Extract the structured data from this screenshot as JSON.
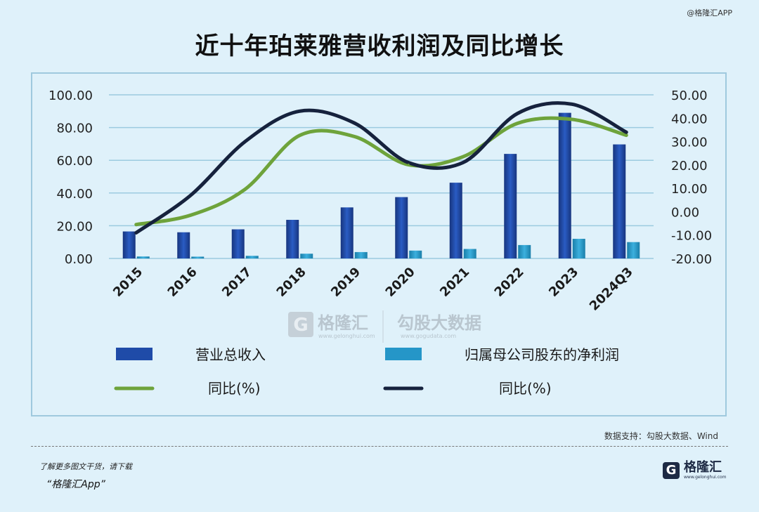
{
  "header": {
    "watermark": "@格隆汇APP",
    "title": "近十年珀莱雅营收利润及同比增长"
  },
  "chart_data": {
    "type": "bar",
    "categories": [
      "2015",
      "2016",
      "2017",
      "2018",
      "2019",
      "2020",
      "2021",
      "2022",
      "2023",
      "2024Q3"
    ],
    "y_left": {
      "ticks": [
        "100.00",
        "80.00",
        "60.00",
        "40.00",
        "20.00",
        "0.00"
      ],
      "ylim": [
        0,
        100
      ]
    },
    "y_right": {
      "ticks": [
        "50.00",
        "40.00",
        "30.00",
        "20.00",
        "10.00",
        "0.00",
        "-10.00",
        "-20.00"
      ],
      "ylim": [
        -20,
        50
      ]
    },
    "series": [
      {
        "name": "营业总收入",
        "kind": "bar",
        "axis": "left",
        "color": "#1f4ba8",
        "values": [
          16.5,
          16.0,
          17.8,
          23.6,
          31.2,
          37.5,
          46.3,
          63.9,
          89.0,
          69.7
        ]
      },
      {
        "name": "归属母公司股东的净利润",
        "kind": "bar",
        "axis": "left",
        "color": "#2596c8",
        "values": [
          1.2,
          1.1,
          1.6,
          2.9,
          3.9,
          4.8,
          5.8,
          8.2,
          12.0,
          10.0
        ]
      },
      {
        "name": "同比(%)",
        "kind": "line",
        "axis": "right",
        "color": "#6ea33b",
        "values": [
          -5.5,
          -1.5,
          9.6,
          32.6,
          32.2,
          20.1,
          23.5,
          37.8,
          39.5,
          32.7
        ]
      },
      {
        "name": "同比(%)",
        "kind": "line",
        "axis": "right",
        "color": "#16223d",
        "values": [
          -9.0,
          7.0,
          30.0,
          43.0,
          38.0,
          21.0,
          21.0,
          42.0,
          46.0,
          34.0
        ]
      }
    ],
    "grid": true,
    "legend_position": "bottom"
  },
  "watermark_center": {
    "logo_glyph": "G",
    "brand": "格隆汇",
    "brand_url": "www.gelonghui.com",
    "partner": "勾股大数据",
    "partner_url": "www.gogudata.com"
  },
  "footer": {
    "source": "数据支持：勾股大数据、Wind",
    "note": "了解更多图文干货，请下载",
    "app": "“格隆汇App”",
    "brand_glyph": "G",
    "brand_name": "格隆汇",
    "brand_url": "www.gelonghui.com"
  }
}
